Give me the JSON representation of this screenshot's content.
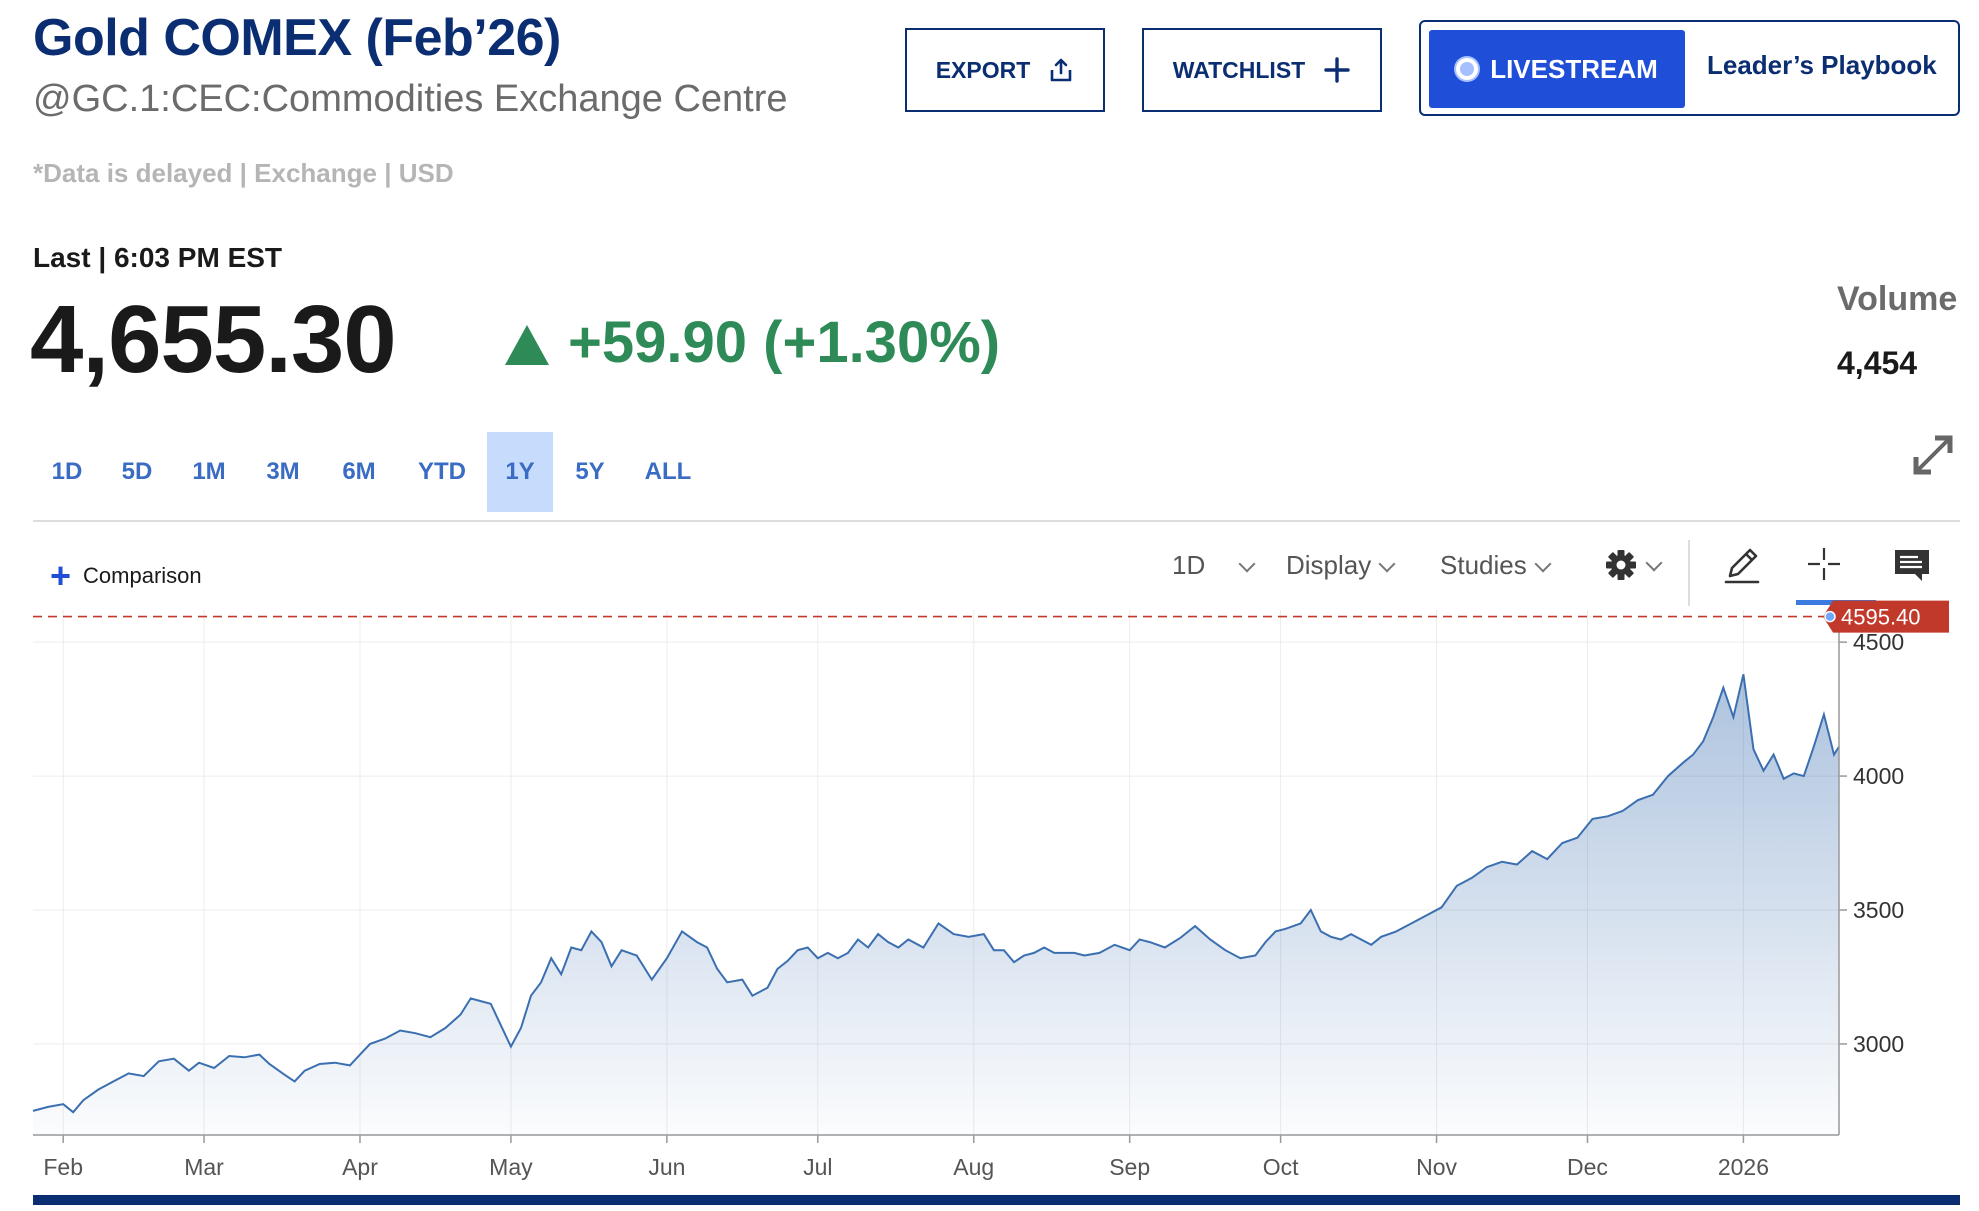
{
  "header": {
    "title": "Gold COMEX (Feb’26)",
    "subtitle": "@GC.1:CEC:Commodities Exchange Centre",
    "delay_note": "*Data is delayed | Exchange | USD"
  },
  "actions": {
    "export_label": "EXPORT",
    "watchlist_label": "WATCHLIST",
    "livestream_label": "LIVESTREAM",
    "playbook_label": "Leader’s Playbook",
    "livestream_color": "#1f4ed8"
  },
  "quote": {
    "last_label": "Last | 6:03 PM EST",
    "price": "4,655.30",
    "change": "+59.90 (+1.30%)",
    "direction": "up",
    "change_color": "#2e8b57",
    "volume_label": "Volume",
    "volume_value": "4,454"
  },
  "range_tabs": [
    {
      "label": "1D",
      "active": false
    },
    {
      "label": "5D",
      "active": false
    },
    {
      "label": "1M",
      "active": false
    },
    {
      "label": "3M",
      "active": false
    },
    {
      "label": "6M",
      "active": false
    },
    {
      "label": "YTD",
      "active": false
    },
    {
      "label": "1Y",
      "active": true
    },
    {
      "label": "5Y",
      "active": false
    },
    {
      "label": "ALL",
      "active": false
    }
  ],
  "toolbar": {
    "comparison_label": "Comparison",
    "interval_label": "1D",
    "display_label": "Display",
    "studies_label": "Studies"
  },
  "chart_data": {
    "type": "area",
    "title": "",
    "xlabel": "",
    "ylabel": "",
    "x_tick_labels": [
      "Feb",
      "Mar",
      "Apr",
      "May",
      "Jun",
      "Jul",
      "Aug",
      "Sep",
      "Oct",
      "Nov",
      "Dec",
      "2026"
    ],
    "y_ticks": [
      3000,
      3500,
      4000,
      4500
    ],
    "ylim": [
      2660,
      4620
    ],
    "xlim": [
      "2025-01-26",
      "2026-01-20"
    ],
    "grid": true,
    "line_color": "#3b6fb0",
    "reference_line": {
      "value": 4595.4,
      "label": "4595.40",
      "color": "#c0392b",
      "style": "dashed"
    },
    "series": [
      {
        "points": [
          [
            "2025-01-26",
            2750
          ],
          [
            "2025-01-29",
            2765
          ],
          [
            "2025-02-01",
            2775
          ],
          [
            "2025-02-03",
            2745
          ],
          [
            "2025-02-05",
            2790
          ],
          [
            "2025-02-08",
            2830
          ],
          [
            "2025-02-11",
            2860
          ],
          [
            "2025-02-14",
            2890
          ],
          [
            "2025-02-17",
            2880
          ],
          [
            "2025-02-20",
            2935
          ],
          [
            "2025-02-23",
            2945
          ],
          [
            "2025-02-26",
            2900
          ],
          [
            "2025-02-28",
            2930
          ],
          [
            "2025-03-03",
            2910
          ],
          [
            "2025-03-06",
            2955
          ],
          [
            "2025-03-09",
            2950
          ],
          [
            "2025-03-12",
            2960
          ],
          [
            "2025-03-14",
            2925
          ],
          [
            "2025-03-17",
            2885
          ],
          [
            "2025-03-19",
            2860
          ],
          [
            "2025-03-21",
            2900
          ],
          [
            "2025-03-24",
            2925
          ],
          [
            "2025-03-27",
            2930
          ],
          [
            "2025-03-30",
            2920
          ],
          [
            "2025-04-01",
            2960
          ],
          [
            "2025-04-03",
            3000
          ],
          [
            "2025-04-06",
            3020
          ],
          [
            "2025-04-09",
            3050
          ],
          [
            "2025-04-12",
            3040
          ],
          [
            "2025-04-15",
            3025
          ],
          [
            "2025-04-18",
            3060
          ],
          [
            "2025-04-21",
            3110
          ],
          [
            "2025-04-23",
            3170
          ],
          [
            "2025-04-25",
            3160
          ],
          [
            "2025-04-27",
            3150
          ],
          [
            "2025-04-29",
            3070
          ],
          [
            "2025-05-01",
            2990
          ],
          [
            "2025-05-03",
            3060
          ],
          [
            "2025-05-05",
            3180
          ],
          [
            "2025-05-07",
            3230
          ],
          [
            "2025-05-09",
            3320
          ],
          [
            "2025-05-11",
            3260
          ],
          [
            "2025-05-13",
            3360
          ],
          [
            "2025-05-15",
            3350
          ],
          [
            "2025-05-17",
            3420
          ],
          [
            "2025-05-19",
            3380
          ],
          [
            "2025-05-21",
            3290
          ],
          [
            "2025-05-23",
            3350
          ],
          [
            "2025-05-26",
            3330
          ],
          [
            "2025-05-29",
            3240
          ],
          [
            "2025-06-01",
            3320
          ],
          [
            "2025-06-04",
            3420
          ],
          [
            "2025-06-07",
            3380
          ],
          [
            "2025-06-09",
            3360
          ],
          [
            "2025-06-11",
            3280
          ],
          [
            "2025-06-13",
            3230
          ],
          [
            "2025-06-16",
            3240
          ],
          [
            "2025-06-18",
            3180
          ],
          [
            "2025-06-21",
            3210
          ],
          [
            "2025-06-23",
            3280
          ],
          [
            "2025-06-25",
            3310
          ],
          [
            "2025-06-27",
            3350
          ],
          [
            "2025-06-29",
            3360
          ],
          [
            "2025-07-01",
            3320
          ],
          [
            "2025-07-03",
            3340
          ],
          [
            "2025-07-05",
            3320
          ],
          [
            "2025-07-07",
            3340
          ],
          [
            "2025-07-09",
            3390
          ],
          [
            "2025-07-11",
            3360
          ],
          [
            "2025-07-13",
            3410
          ],
          [
            "2025-07-15",
            3380
          ],
          [
            "2025-07-17",
            3360
          ],
          [
            "2025-07-19",
            3390
          ],
          [
            "2025-07-22",
            3360
          ],
          [
            "2025-07-25",
            3450
          ],
          [
            "2025-07-28",
            3410
          ],
          [
            "2025-07-31",
            3400
          ],
          [
            "2025-08-03",
            3410
          ],
          [
            "2025-08-05",
            3350
          ],
          [
            "2025-08-07",
            3350
          ],
          [
            "2025-08-09",
            3305
          ],
          [
            "2025-08-11",
            3330
          ],
          [
            "2025-08-13",
            3340
          ],
          [
            "2025-08-15",
            3360
          ],
          [
            "2025-08-17",
            3340
          ],
          [
            "2025-08-19",
            3340
          ],
          [
            "2025-08-21",
            3340
          ],
          [
            "2025-08-23",
            3330
          ],
          [
            "2025-08-26",
            3340
          ],
          [
            "2025-08-29",
            3370
          ],
          [
            "2025-09-01",
            3350
          ],
          [
            "2025-09-03",
            3390
          ],
          [
            "2025-09-05",
            3380
          ],
          [
            "2025-09-08",
            3360
          ],
          [
            "2025-09-11",
            3395
          ],
          [
            "2025-09-14",
            3440
          ],
          [
            "2025-09-17",
            3390
          ],
          [
            "2025-09-20",
            3350
          ],
          [
            "2025-09-23",
            3320
          ],
          [
            "2025-09-26",
            3330
          ],
          [
            "2025-09-28",
            3380
          ],
          [
            "2025-09-30",
            3420
          ],
          [
            "2025-10-02",
            3430
          ],
          [
            "2025-10-05",
            3450
          ],
          [
            "2025-10-07",
            3500
          ],
          [
            "2025-10-09",
            3420
          ],
          [
            "2025-10-11",
            3400
          ],
          [
            "2025-10-13",
            3390
          ],
          [
            "2025-10-15",
            3410
          ],
          [
            "2025-10-17",
            3390
          ],
          [
            "2025-10-19",
            3370
          ],
          [
            "2025-10-21",
            3400
          ],
          [
            "2025-10-24",
            3420
          ],
          [
            "2025-10-27",
            3450
          ],
          [
            "2025-10-30",
            3480
          ],
          [
            "2025-11-02",
            3510
          ],
          [
            "2025-11-05",
            3590
          ],
          [
            "2025-11-08",
            3620
          ],
          [
            "2025-11-11",
            3660
          ],
          [
            "2025-11-14",
            3680
          ],
          [
            "2025-11-17",
            3670
          ],
          [
            "2025-11-20",
            3720
          ],
          [
            "2025-11-23",
            3690
          ],
          [
            "2025-11-26",
            3750
          ],
          [
            "2025-11-29",
            3770
          ],
          [
            "2025-12-02",
            3840
          ],
          [
            "2025-12-05",
            3850
          ],
          [
            "2025-12-08",
            3870
          ],
          [
            "2025-12-11",
            3910
          ],
          [
            "2025-12-14",
            3930
          ],
          [
            "2025-12-17",
            4000
          ],
          [
            "2025-12-20",
            4050
          ],
          [
            "2025-12-22",
            4080
          ],
          [
            "2025-12-24",
            4130
          ],
          [
            "2025-12-26",
            4220
          ],
          [
            "2025-12-28",
            4330
          ],
          [
            "2025-12-30",
            4220
          ],
          [
            "2026-01-01",
            4380
          ],
          [
            "2026-01-03",
            4100
          ],
          [
            "2026-01-05",
            4020
          ],
          [
            "2026-01-07",
            4080
          ],
          [
            "2026-01-09",
            3990
          ],
          [
            "2026-01-11",
            4010
          ],
          [
            "2026-01-13",
            4000
          ],
          [
            "2026-01-15",
            4110
          ],
          [
            "2026-01-17",
            4230
          ],
          [
            "2026-01-19",
            4080
          ],
          [
            "2026-01-20",
            4110
          ]
        ]
      }
    ]
  }
}
